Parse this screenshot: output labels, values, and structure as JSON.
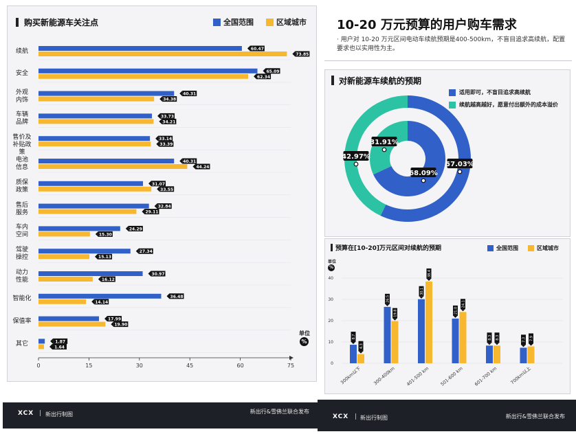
{
  "colors": {
    "national": "#3060c8",
    "regional": "#f7b82f",
    "donut_inner": "#3060c8",
    "donut_outer": "#2bc3a4"
  },
  "left": {
    "title": "购买新能源车关注点",
    "legend": [
      "全国范围",
      "区域城市"
    ],
    "unit_label": "单位",
    "unit_symbol": "%"
  },
  "header": {
    "title": "10-20 万元预算的用户购车需求",
    "description": "· 用户对 10-20 万元区间电动车续航预期是400-500km，不盲目追求高续航，配置要求也以实用性为主。"
  },
  "donut": {
    "title": "对新能源车续航的预期",
    "legend": [
      "适用即可，不盲目追求高续航",
      "续航越高越好，愿意付出额外的成本溢价"
    ]
  },
  "bar2": {
    "title": "预算在[10-20]万元区间对续航的预期",
    "legend": [
      "全国范围",
      "区域城市"
    ],
    "unit_label": "单位",
    "unit_symbol": "%"
  },
  "footer": {
    "logo": "XCX",
    "brand": "新出行制图",
    "publisher": "新出行&雪佛兰联合发布"
  },
  "chart_data": [
    {
      "type": "bar",
      "orientation": "horizontal",
      "categories": [
        [
          "续航"
        ],
        [
          "安全"
        ],
        [
          "外观",
          "内饰"
        ],
        [
          "车辆",
          "品牌"
        ],
        [
          "售价及",
          "补贴政策"
        ],
        [
          "电池",
          "信息"
        ],
        [
          "质保",
          "政策"
        ],
        [
          "售后",
          "服务"
        ],
        [
          "车内",
          "空间"
        ],
        [
          "驾驶",
          "操控"
        ],
        [
          "动力",
          "性能"
        ],
        [
          "智能化"
        ],
        [
          "保值率"
        ],
        [
          "其它"
        ]
      ],
      "series": [
        {
          "name": "全国范围",
          "values": [
            60.47,
            65.09,
            40.31,
            33.73,
            33.14,
            40.31,
            31.07,
            32.84,
            24.29,
            27.34,
            30.97,
            36.48,
            17.99,
            1.87
          ]
        },
        {
          "name": "区域城市",
          "values": [
            73.85,
            62.34,
            34.38,
            34.21,
            33.39,
            44.24,
            33.55,
            29.11,
            15.3,
            15.13,
            16.12,
            14.14,
            19.9,
            1.64
          ]
        }
      ],
      "x_ticks": [
        0,
        15,
        30,
        45,
        60,
        75
      ],
      "xlim": [
        0,
        75
      ],
      "grid": false,
      "legend_position": "top-right"
    },
    {
      "type": "pie",
      "variant": "double-donut",
      "rings": [
        {
          "ring": "outer",
          "slices": [
            {
              "name": "适用即可，不盲目追求高续航",
              "value": 57.03
            },
            {
              "name": "续航越高越好，愿意付出额外的成本溢价",
              "value": 42.97
            }
          ]
        },
        {
          "ring": "inner",
          "slices": [
            {
              "name": "适用即可，不盲目追求高续航",
              "value": 68.09
            },
            {
              "name": "续航越高越好，愿意付出额外的成本溢价",
              "value": 31.91
            }
          ]
        }
      ],
      "labels": [
        "57.03%",
        "42.97%",
        "68.09%",
        "31.91%"
      ],
      "legend_position": "top-right"
    },
    {
      "type": "bar",
      "orientation": "vertical",
      "categories": [
        "300km以下",
        "300-400km",
        "401-500 km",
        "501-600 km",
        "601-700 km",
        "700km以上"
      ],
      "series": [
        {
          "name": "全国范围",
          "values": [
            8.7,
            26.5,
            30.1,
            21.0,
            8.3,
            7.3
          ],
          "labels": [
            "8.7",
            "26.5",
            "30.1",
            "21.0",
            "8.3",
            "7.3"
          ]
        },
        {
          "name": "区域城市",
          "values": [
            4.3,
            19.8,
            38.4,
            24.1,
            8.3,
            7.9
          ],
          "labels": [
            "4.3",
            "19.8",
            "38.4",
            "24.1",
            "8.3",
            "7.9"
          ]
        }
      ],
      "y_ticks": [
        0,
        10,
        20,
        30,
        40
      ],
      "ylim": [
        0,
        40
      ],
      "grid": true,
      "legend_position": "top-right"
    }
  ]
}
